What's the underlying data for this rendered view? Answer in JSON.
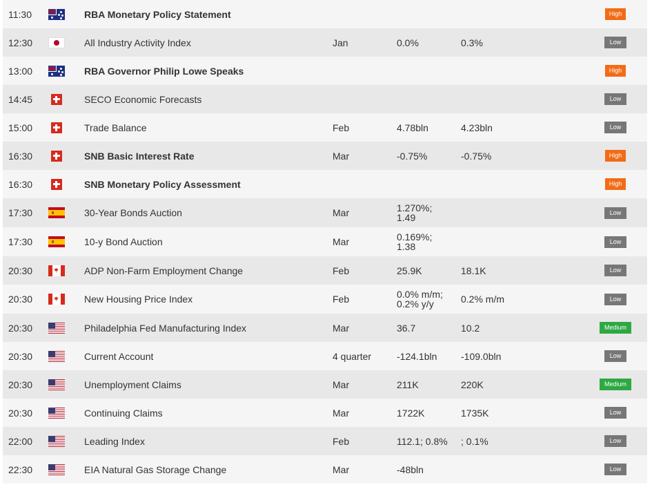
{
  "colors": {
    "high": "#f26b16",
    "low": "#777777",
    "medium": "#2ea842",
    "row_odd": "#f5f5f5",
    "row_even": "#e8e8e8"
  },
  "rows": [
    {
      "time": "11:30",
      "flag": "australia-flag-icon",
      "event": "RBA Monetary Policy Statement",
      "bold": true,
      "period": "",
      "actual": "",
      "forecast": "",
      "importance": "High"
    },
    {
      "time": "12:30",
      "flag": "japan-flag-icon",
      "event": "All Industry Activity Index",
      "bold": false,
      "period": "Jan",
      "actual": "0.0%",
      "forecast": "0.3%",
      "importance": "Low"
    },
    {
      "time": "13:00",
      "flag": "australia-flag-icon",
      "event": "RBA Governor Philip Lowe Speaks",
      "bold": true,
      "period": "",
      "actual": "",
      "forecast": "",
      "importance": "High"
    },
    {
      "time": "14:45",
      "flag": "switzerland-flag-icon",
      "event": "SECO Economic Forecasts",
      "bold": false,
      "period": "",
      "actual": "",
      "forecast": "",
      "importance": "Low"
    },
    {
      "time": "15:00",
      "flag": "switzerland-flag-icon",
      "event": "Trade Balance",
      "bold": false,
      "period": "Feb",
      "actual": "4.78bln",
      "forecast": "4.23bln",
      "importance": "Low"
    },
    {
      "time": "16:30",
      "flag": "switzerland-flag-icon",
      "event": "SNB Basic Interest Rate",
      "bold": true,
      "period": "Mar",
      "actual": "-0.75%",
      "forecast": "-0.75%",
      "importance": "High"
    },
    {
      "time": "16:30",
      "flag": "switzerland-flag-icon",
      "event": "SNB Monetary Policy Assessment",
      "bold": true,
      "period": "",
      "actual": "",
      "forecast": "",
      "importance": "High"
    },
    {
      "time": "17:30",
      "flag": "spain-flag-icon",
      "event": "30-Year Bonds Auction",
      "bold": false,
      "period": "Mar",
      "actual": "1.270%;\n1.49",
      "forecast": "",
      "importance": "Low"
    },
    {
      "time": "17:30",
      "flag": "spain-flag-icon",
      "event": "10-y Bond Auction",
      "bold": false,
      "period": "Mar",
      "actual": "0.169%;\n1.38",
      "forecast": "",
      "importance": "Low"
    },
    {
      "time": "20:30",
      "flag": "canada-flag-icon",
      "event": "ADP Non-Farm Employment Change",
      "bold": false,
      "period": "Feb",
      "actual": "25.9K",
      "forecast": "18.1K",
      "importance": "Low"
    },
    {
      "time": "20:30",
      "flag": "canada-flag-icon",
      "event": "New Housing Price Index",
      "bold": false,
      "period": "Feb",
      "actual": "0.0% m/m;\n0.2% y/y",
      "forecast": "0.2% m/m",
      "importance": "Low"
    },
    {
      "time": "20:30",
      "flag": "usa-flag-icon",
      "event": "Philadelphia Fed Manufacturing Index",
      "bold": false,
      "period": "Mar",
      "actual": "36.7",
      "forecast": "10.2",
      "importance": "Medium"
    },
    {
      "time": "20:30",
      "flag": "usa-flag-icon",
      "event": "Current Account",
      "bold": false,
      "period": "4 quarter",
      "actual": "-124.1bln",
      "forecast": "-109.0bln",
      "importance": "Low"
    },
    {
      "time": "20:30",
      "flag": "usa-flag-icon",
      "event": "Unemployment Claims",
      "bold": false,
      "period": "Mar",
      "actual": "211K",
      "forecast": "220K",
      "importance": "Medium"
    },
    {
      "time": "20:30",
      "flag": "usa-flag-icon",
      "event": "Continuing Claims",
      "bold": false,
      "period": "Mar",
      "actual": "1722K",
      "forecast": "1735K",
      "importance": "Low"
    },
    {
      "time": "22:00",
      "flag": "usa-flag-icon",
      "event": "Leading Index",
      "bold": false,
      "period": "Feb",
      "actual": "112.1; 0.8%",
      "forecast": "; 0.1%",
      "importance": "Low"
    },
    {
      "time": "22:30",
      "flag": "usa-flag-icon",
      "event": "EIA Natural Gas Storage Change",
      "bold": false,
      "period": "Mar",
      "actual": "-48bln",
      "forecast": "",
      "importance": "Low"
    }
  ]
}
